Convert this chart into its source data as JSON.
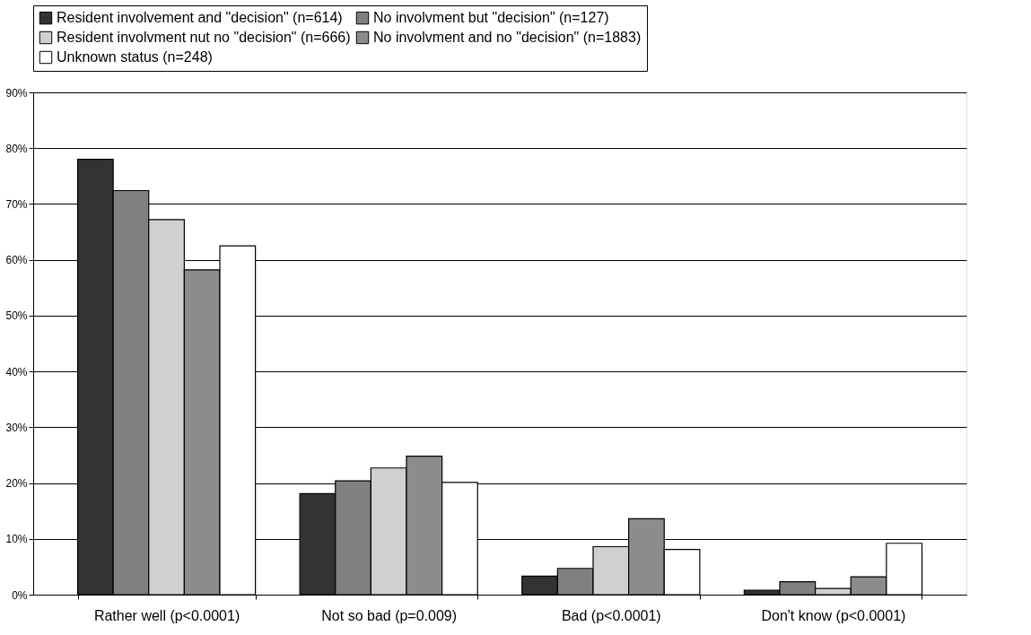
{
  "chart_data": {
    "type": "bar",
    "categories": [
      "Rather well (p<0.0001)",
      "Not so bad (p=0.009)",
      "Bad (p<0.0001)",
      "Don't know (p<0.0001)"
    ],
    "series": [
      {
        "name": "Resident involvement and \"decision\" (n=614)",
        "color": "#333333",
        "values": [
          78,
          18.1,
          3.3,
          0.8
        ]
      },
      {
        "name": "No involvment but \"decision\" (n=127)",
        "color": "#808080",
        "values": [
          72.4,
          20.4,
          4.7,
          2.3
        ]
      },
      {
        "name": "Resident involvment nut no \"decision\" (n=666)",
        "color": "#d0d0d0",
        "values": [
          67.2,
          22.7,
          8.6,
          1.1
        ]
      },
      {
        "name": "No involvment and no \"decision\" (n=1883)",
        "color": "#8c8c8c",
        "values": [
          58.2,
          24.8,
          13.6,
          3.2
        ]
      },
      {
        "name": "Unknown status (n=248)",
        "color": "#ffffff",
        "values": [
          62.5,
          20.1,
          8.1,
          9.2
        ]
      }
    ],
    "ylim": [
      0,
      90
    ],
    "yticks": [
      {
        "value": 0,
        "label": "0%"
      },
      {
        "value": 10,
        "label": "10%"
      },
      {
        "value": 20,
        "label": "20%"
      },
      {
        "value": 30,
        "label": "30%"
      },
      {
        "value": 40,
        "label": "40%"
      },
      {
        "value": 50,
        "label": "50%"
      },
      {
        "value": 60,
        "label": "60%"
      },
      {
        "value": 70,
        "label": "70%"
      },
      {
        "value": 80,
        "label": "80%"
      },
      {
        "value": 90,
        "label": "90%"
      }
    ],
    "grid": "y",
    "legend": "top"
  }
}
